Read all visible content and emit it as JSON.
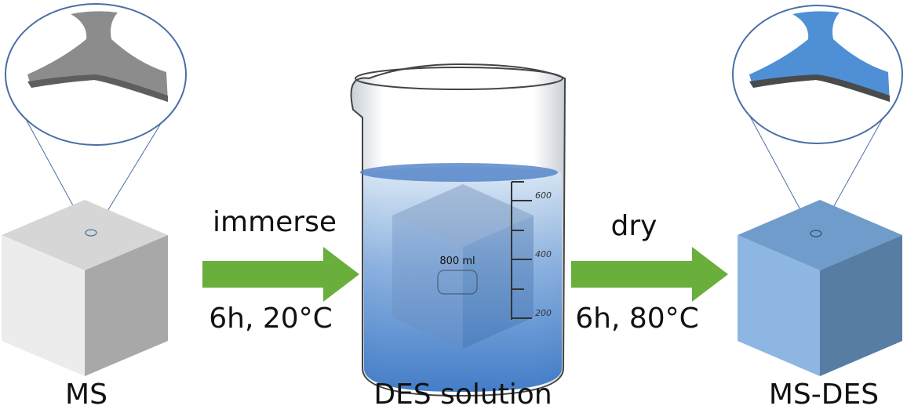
{
  "steps": [
    {
      "action": "immerse",
      "condition": "6h, 20°C"
    },
    {
      "action": "dry",
      "condition": "6h, 80°C"
    }
  ],
  "stages": [
    "MS",
    "DES solution",
    "MS-DES"
  ],
  "beaker": {
    "volume": "800 ml",
    "scale": [
      "600",
      "400",
      "200"
    ]
  }
}
